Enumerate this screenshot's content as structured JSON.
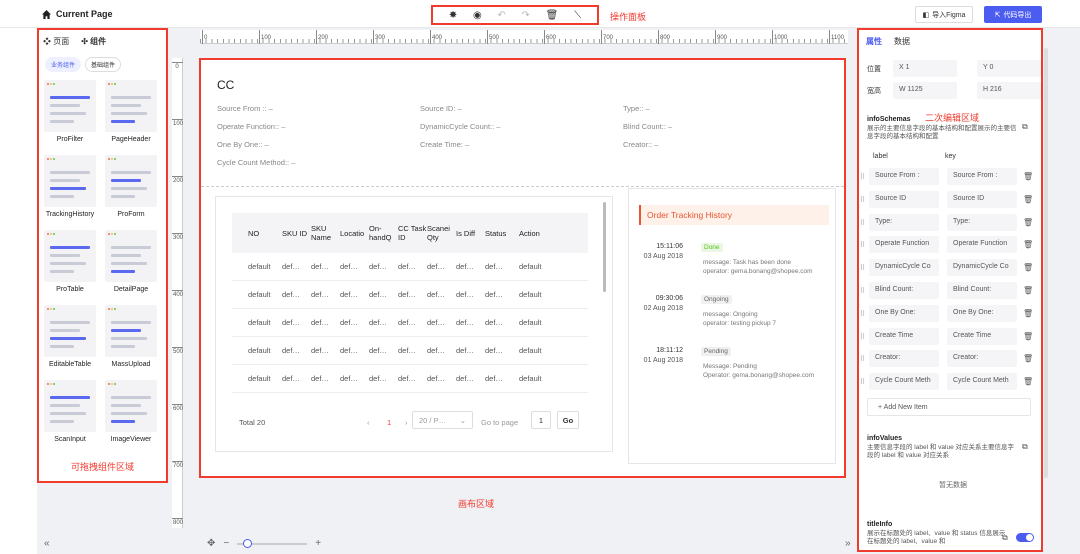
{
  "header": {
    "title": "Current Page",
    "toolbar_label": "操作面板",
    "import_figma": "导入Figma",
    "export_code": "代码导出",
    "colors": {
      "accent": "#4b5cf0",
      "highlight": "#f03b2e"
    }
  },
  "left_panel": {
    "tabs": [
      "页面",
      "组件"
    ],
    "pills": [
      "业务组件",
      "基础组件"
    ],
    "components": [
      "ProFilter",
      "PageHeader",
      "TrackingHistory",
      "ProForm",
      "ProTable",
      "DetailPage",
      "EditableTable",
      "MassUpload",
      "ScanInput",
      "ImageViewer"
    ],
    "footer_label": "可拖拽组件区域"
  },
  "ruler": {
    "top_ticks": [
      "0",
      "100",
      "200",
      "300",
      "400",
      "500",
      "600",
      "700",
      "800",
      "900",
      "1000",
      "1100"
    ],
    "left_ticks": [
      "0",
      "100",
      "200",
      "300",
      "400",
      "500",
      "600",
      "700",
      "800"
    ]
  },
  "canvas": {
    "title": "CC",
    "info": [
      "Source From :: –",
      "Source ID: –",
      "Type:: –",
      "Operate Function:: –",
      "DynamicCycle Count:: –",
      "Blind Count:: –",
      "One By One:: –",
      "Create Time: –",
      "Creator:: –",
      "Cycle Count Method:: –"
    ],
    "table": {
      "headers": [
        "NO",
        "SKU ID",
        "SKU Name",
        "Locatio",
        "On-handQ",
        "CC Task ID",
        "Scanei Qty",
        "Is Diff",
        "Status",
        "Action"
      ],
      "rows": [
        [
          "default",
          "def…",
          "def…",
          "def…",
          "def…",
          "def…",
          "def…",
          "def…",
          "def…",
          "default"
        ],
        [
          "default",
          "def…",
          "def…",
          "def…",
          "def…",
          "def…",
          "def…",
          "def…",
          "def…",
          "default"
        ],
        [
          "default",
          "def…",
          "def…",
          "def…",
          "def…",
          "def…",
          "def…",
          "def…",
          "def…",
          "default"
        ],
        [
          "default",
          "def…",
          "def…",
          "def…",
          "def…",
          "def…",
          "def…",
          "def…",
          "def…",
          "default"
        ],
        [
          "default",
          "def…",
          "def…",
          "def…",
          "def…",
          "def…",
          "def…",
          "def…",
          "def…",
          "default"
        ]
      ],
      "total": "Total 20",
      "current_page": "1",
      "page_size": "20 / P…",
      "goto_label": "Go to page",
      "goto_value": "1",
      "go_button": "Go"
    },
    "history": {
      "title": "Order Tracking History",
      "items": [
        {
          "time": "15:11:06",
          "date": "03 Aug 2018",
          "status": "Done",
          "status_color": "#52c41a",
          "status_bg": "#eaf7e4",
          "message": "message:  Task has been done",
          "operator": "operator:  gema.bonang@shopee.com"
        },
        {
          "time": "09:30:06",
          "date": "02 Aug 2018",
          "status": "Ongoing",
          "status_color": "#666666",
          "status_bg": "#f0f0f0",
          "message": "message:  Ongoing",
          "operator": "operator:  testing pickup 7"
        },
        {
          "time": "18:11:12",
          "date": "01 Aug 2018",
          "status": "Pending",
          "status_color": "#666666",
          "status_bg": "#f0f0f0",
          "message": "Message:  Pending",
          "operator": "Operator:  gema.bonang@shopee.com"
        }
      ]
    },
    "area_label": "画布区域"
  },
  "right_panel": {
    "tabs": [
      "属性",
      "数据"
    ],
    "position_label": "位置",
    "x_value": "X  1",
    "y_value": "Y  0",
    "size_label": "宽高",
    "w_value": "W  1125",
    "h_value": "H  216",
    "edit_label": "二次编辑区域",
    "info_schemas_title": "infoSchemas",
    "info_schemas_desc": "展示的主要信息字段的基本结构和配置展示的主要信息字段的基本结构和配置",
    "col_label": "label",
    "col_key": "key",
    "schema_rows": [
      [
        "Source From :",
        "Source From :"
      ],
      [
        "Source ID",
        "Source ID"
      ],
      [
        "Type:",
        "Type:"
      ],
      [
        "Operate Function",
        "Operate Function"
      ],
      [
        "DynamicCycle Co",
        "DynamicCycle Co"
      ],
      [
        "Blind Count:",
        "Blind Count:"
      ],
      [
        "One By One:",
        "One By One:"
      ],
      [
        "Create Time",
        "Create Time"
      ],
      [
        "Creator:",
        "Creator:"
      ],
      [
        "Cycle Count Meth",
        "Cycle Count Meth"
      ]
    ],
    "add_item": "+ Add New Item",
    "info_values_title": "infoValues",
    "info_values_desc": "主要信息字段的 label 和 value 对应关系主要信息字段的 label 和 value 对应关系",
    "no_data": "暂无数据",
    "title_info_title": "titleInfo",
    "title_info_desc": "展示在标题处的 label、value 和 status 信息展示在标题处的 label、value 和",
    "title_info_toggle": true
  }
}
